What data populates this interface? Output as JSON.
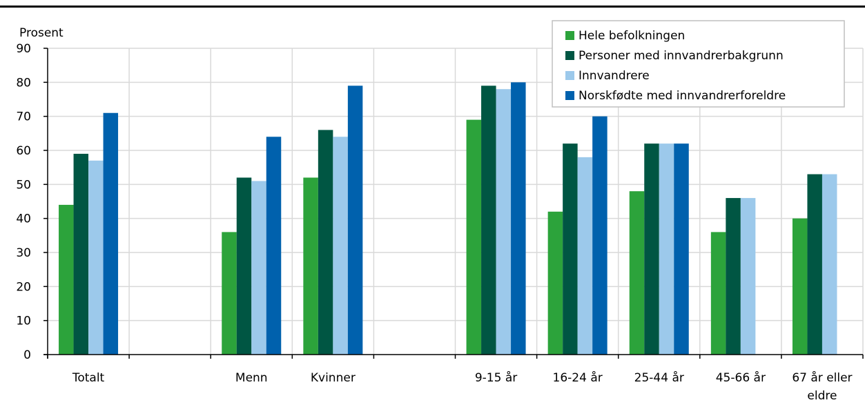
{
  "chart_data": {
    "type": "bar",
    "ylabel": "Prosent",
    "xlabel": "",
    "ylim": [
      0,
      90
    ],
    "yticks": [
      0,
      10,
      20,
      30,
      40,
      50,
      60,
      70,
      80,
      90
    ],
    "grid": true,
    "legend_position": "top-right",
    "categories": [
      [
        "Totalt"
      ],
      [
        ""
      ],
      [
        "Menn"
      ],
      [
        "Kvinner"
      ],
      [
        ""
      ],
      [
        "9-15 år"
      ],
      [
        "16-24 år"
      ],
      [
        "25-44 år"
      ],
      [
        "45-66 år"
      ],
      [
        "67 år eller",
        "eldre"
      ]
    ],
    "series": [
      {
        "name": "Hele befolkningen",
        "color": "#2ca33b",
        "values": [
          44,
          null,
          36,
          52,
          null,
          69,
          42,
          48,
          36,
          40
        ]
      },
      {
        "name": "Personer med innvandrerbakgrunn",
        "color": "#005643",
        "values": [
          59,
          null,
          52,
          66,
          null,
          79,
          62,
          62,
          46,
          53
        ]
      },
      {
        "name": "Innvandrere",
        "color": "#9cc9eb",
        "values": [
          57,
          null,
          51,
          64,
          null,
          78,
          58,
          62,
          46,
          53
        ]
      },
      {
        "name": "Norskfødte med innvandrerforeldre",
        "color": "#0061ad",
        "values": [
          71,
          null,
          64,
          79,
          null,
          80,
          70,
          62,
          null,
          null
        ]
      }
    ]
  }
}
